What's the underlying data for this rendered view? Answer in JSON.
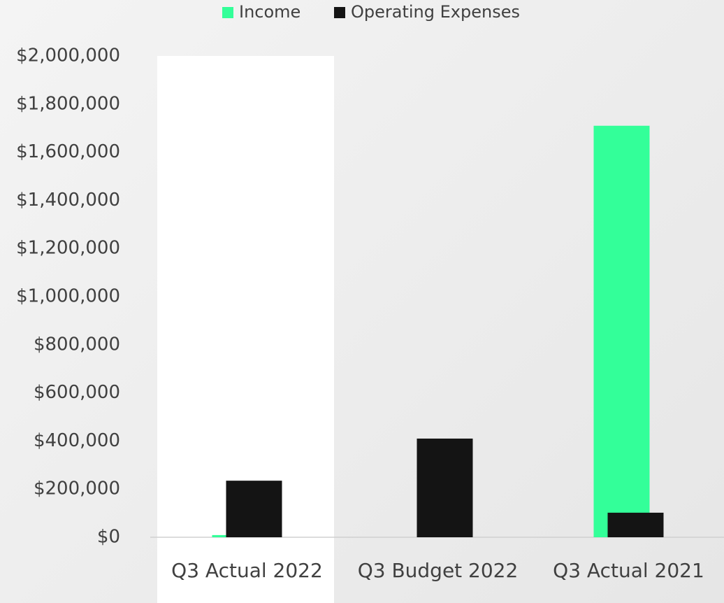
{
  "chart_data": {
    "type": "bar",
    "categories": [
      "Q3 Actual 2022",
      "Q3  Budget 2022",
      "Q3 Actual 2021"
    ],
    "series": [
      {
        "name": "Income",
        "color": "#33ff99",
        "values": [
          9000,
          0,
          1710000
        ]
      },
      {
        "name": "Operating Expenses",
        "color": "#141414",
        "values": [
          235000,
          410000,
          102000
        ]
      }
    ],
    "ylim": [
      0,
      2000000
    ],
    "yticks": [
      {
        "value": 0,
        "label": "$0"
      },
      {
        "value": 200000,
        "label": "$200,000"
      },
      {
        "value": 400000,
        "label": "$400,000"
      },
      {
        "value": 600000,
        "label": "$600,000"
      },
      {
        "value": 800000,
        "label": "$800,000"
      },
      {
        "value": 1000000,
        "label": "$1,000,000"
      },
      {
        "value": 1200000,
        "label": "$1,200,000"
      },
      {
        "value": 1400000,
        "label": "$1,400,000"
      },
      {
        "value": 1600000,
        "label": "$1,600,000"
      },
      {
        "value": 1800000,
        "label": "$1,800,000"
      },
      {
        "value": 2000000,
        "label": "$2,000,000"
      }
    ],
    "legend": "top"
  }
}
